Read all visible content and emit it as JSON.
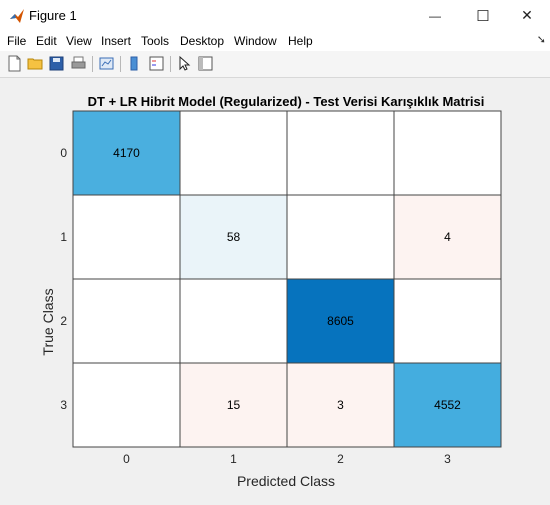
{
  "window": {
    "title": "Figure 1",
    "minimize_glyph": "—",
    "maximize_glyph": "☐",
    "close_glyph": "✕"
  },
  "menu": [
    {
      "label": "File"
    },
    {
      "label": "Edit"
    },
    {
      "label": "View"
    },
    {
      "label": "Insert"
    },
    {
      "label": "Tools"
    },
    {
      "label": "Desktop"
    },
    {
      "label": "Window"
    },
    {
      "label": "Help"
    }
  ],
  "toolbar": {
    "icons": [
      "new-figure-icon",
      "open-file-icon",
      "save-icon",
      "print-icon",
      "link-plot-icon",
      "colorbar-icon",
      "legend-icon",
      "pointer-icon",
      "property-inspector-icon"
    ]
  },
  "colors": {
    "brand_red": "#d35400",
    "cell_border": "#444444",
    "figure_bg": "#f0f0f0"
  },
  "chart_data": {
    "type": "heatmap",
    "title": "DT + LR Hibrit Model (Regularized) - Test Verisi Karışıklık Matrisi",
    "xlabel": "Predicted Class",
    "ylabel": "True Class",
    "x_categories": [
      "0",
      "1",
      "2",
      "3"
    ],
    "y_categories": [
      "0",
      "1",
      "2",
      "3"
    ],
    "cells": [
      {
        "row": 0,
        "col": 0,
        "value": "4170",
        "color": "#4aafdf"
      },
      {
        "row": 1,
        "col": 1,
        "value": "58",
        "color": "#eaf4f9"
      },
      {
        "row": 1,
        "col": 3,
        "value": "4",
        "color": "#fdf3f1"
      },
      {
        "row": 2,
        "col": 2,
        "value": "8605",
        "color": "#0673be"
      },
      {
        "row": 3,
        "col": 1,
        "value": "15",
        "color": "#fdf3f1"
      },
      {
        "row": 3,
        "col": 2,
        "value": "3",
        "color": "#fdf3f1"
      },
      {
        "row": 3,
        "col": 3,
        "value": "4552",
        "color": "#44addf"
      }
    ]
  }
}
